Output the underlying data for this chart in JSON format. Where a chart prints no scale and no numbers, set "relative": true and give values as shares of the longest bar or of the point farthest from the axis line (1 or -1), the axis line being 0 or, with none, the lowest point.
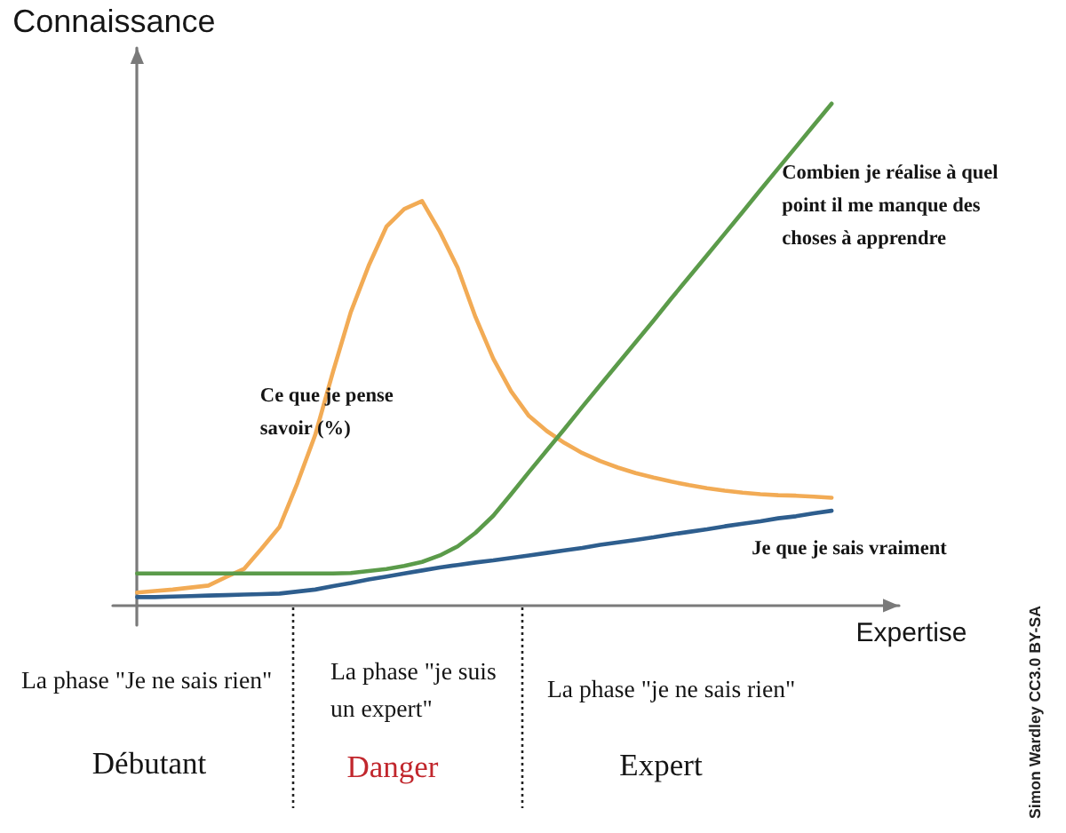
{
  "chart_data": {
    "type": "line",
    "relative": true,
    "xlabel": "Expertise",
    "ylabel": "Connaissance",
    "marker": "none",
    "line_style": "solid",
    "categories": [
      null,
      null,
      null,
      null,
      null,
      null,
      null,
      null,
      null,
      null,
      null,
      null,
      null,
      null,
      null,
      null,
      null,
      null,
      null,
      null,
      null,
      null,
      null,
      null,
      null,
      null,
      null,
      null,
      null,
      null,
      null,
      null,
      null,
      null,
      null,
      null,
      null,
      null,
      null,
      null
    ],
    "series": [
      {
        "name": "Ce que je pense savoir (%)",
        "color": "#f2ab55",
        "values": [
          0.026,
          0.029,
          0.032,
          0.036,
          0.04,
          0.057,
          0.073,
          0.114,
          0.157,
          0.244,
          0.34,
          0.466,
          0.585,
          0.677,
          0.755,
          0.79,
          0.806,
          0.745,
          0.673,
          0.575,
          0.492,
          0.427,
          0.378,
          0.348,
          0.324,
          0.304,
          0.288,
          0.275,
          0.264,
          0.255,
          0.247,
          0.24,
          0.234,
          0.229,
          0.225,
          0.222,
          0.22,
          0.219,
          0.217,
          0.215
        ]
      },
      {
        "name": "Combien je réalise à quel point il me manque des choses à apprendre",
        "color": "#5b9b4a",
        "values": [
          0.064,
          0.064,
          0.064,
          0.064,
          0.064,
          0.064,
          0.064,
          0.064,
          0.064,
          0.064,
          0.064,
          0.064,
          0.065,
          0.069,
          0.073,
          0.079,
          0.087,
          0.1,
          0.118,
          0.145,
          0.179,
          0.222,
          0.266,
          0.309,
          0.352,
          0.396,
          0.439,
          0.482,
          0.525,
          0.568,
          0.612,
          0.655,
          0.698,
          0.741,
          0.784,
          0.828,
          0.871,
          0.914,
          0.957,
          1
        ]
      },
      {
        "name": "Je que je sais vraiment",
        "color": "#2e5e8e",
        "values": [
          0.017,
          0.017,
          0.018,
          0.019,
          0.02,
          0.021,
          0.022,
          0.023,
          0.024,
          0.028,
          0.032,
          0.039,
          0.045,
          0.052,
          0.058,
          0.064,
          0.07,
          0.076,
          0.081,
          0.086,
          0.09,
          0.095,
          0.1,
          0.105,
          0.11,
          0.115,
          0.121,
          0.126,
          0.131,
          0.136,
          0.142,
          0.147,
          0.152,
          0.158,
          0.163,
          0.168,
          0.174,
          0.178,
          0.184,
          0.189
        ]
      }
    ],
    "annotations": [
      "La phase \"Je ne sais rien\"",
      "La phase \"je suis un expert\"",
      "La phase \"je ne sais rien\"",
      "Débutant",
      "Danger",
      "Expert",
      "Simon Wardley CC3.0 BY-SA"
    ]
  }
}
